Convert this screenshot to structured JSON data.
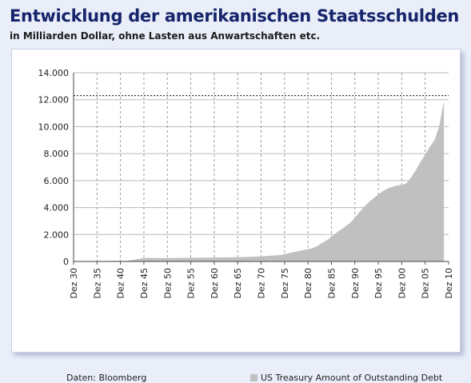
{
  "title": "Entwicklung der amerikanischen Staatsschulden",
  "subtitle": "in Milliarden Dollar, ohne Lasten aus Anwartschaften etc.",
  "source": "Daten: Bloomberg",
  "chart_data": {
    "type": "area",
    "y_ticks": [
      "0",
      "2.000",
      "4.000",
      "6.000",
      "8.000",
      "10.000",
      "12.000",
      "14.000"
    ],
    "ylim": [
      0,
      14000
    ],
    "x_ticks": [
      "Dez 30",
      "Dez 35",
      "Dez 40",
      "Dez 45",
      "Dez 50",
      "Dez 55",
      "Dez 60",
      "Dez 65",
      "Dez 70",
      "Dez 75",
      "Dez 80",
      "Dez 85",
      "Dez 90",
      "Dez 95",
      "Dez 00",
      "Dez 05",
      "Dez 10"
    ],
    "xlim": [
      1930,
      2010
    ],
    "grid": {
      "x": "dashed",
      "y": "solid"
    },
    "reference_line": {
      "value": 12300,
      "style": "dotted"
    },
    "legend_position": "bottom-right",
    "series": [
      {
        "name": "US Treasury Amount of Outstanding Debt",
        "color": "#c0c0c0",
        "points": [
          [
            1930,
            16
          ],
          [
            1932,
            19
          ],
          [
            1934,
            27
          ],
          [
            1936,
            34
          ],
          [
            1938,
            37
          ],
          [
            1940,
            43
          ],
          [
            1941,
            49
          ],
          [
            1942,
            72
          ],
          [
            1943,
            137
          ],
          [
            1944,
            201
          ],
          [
            1945,
            259
          ],
          [
            1946,
            269
          ],
          [
            1948,
            252
          ],
          [
            1950,
            257
          ],
          [
            1952,
            259
          ],
          [
            1954,
            271
          ],
          [
            1956,
            272
          ],
          [
            1958,
            276
          ],
          [
            1960,
            290
          ],
          [
            1962,
            303
          ],
          [
            1964,
            316
          ],
          [
            1966,
            328
          ],
          [
            1968,
            348
          ],
          [
            1970,
            370
          ],
          [
            1972,
            427
          ],
          [
            1974,
            475
          ],
          [
            1976,
            620
          ],
          [
            1978,
            772
          ],
          [
            1980,
            908
          ],
          [
            1981,
            998
          ],
          [
            1982,
            1142
          ],
          [
            1983,
            1377
          ],
          [
            1984,
            1572
          ],
          [
            1985,
            1823
          ],
          [
            1986,
            2125
          ],
          [
            1987,
            2350
          ],
          [
            1988,
            2602
          ],
          [
            1989,
            2857
          ],
          [
            1990,
            3233
          ],
          [
            1991,
            3665
          ],
          [
            1992,
            4064
          ],
          [
            1993,
            4411
          ],
          [
            1994,
            4692
          ],
          [
            1995,
            4974
          ],
          [
            1996,
            5225
          ],
          [
            1997,
            5413
          ],
          [
            1998,
            5526
          ],
          [
            1999,
            5656
          ],
          [
            2000,
            5674
          ],
          [
            2001,
            5807
          ],
          [
            2002,
            6228
          ],
          [
            2003,
            6783
          ],
          [
            2004,
            7379
          ],
          [
            2005,
            7933
          ],
          [
            2006,
            8507
          ],
          [
            2007,
            9008
          ],
          [
            2008,
            10025
          ],
          [
            2009,
            11910
          ]
        ]
      }
    ]
  }
}
